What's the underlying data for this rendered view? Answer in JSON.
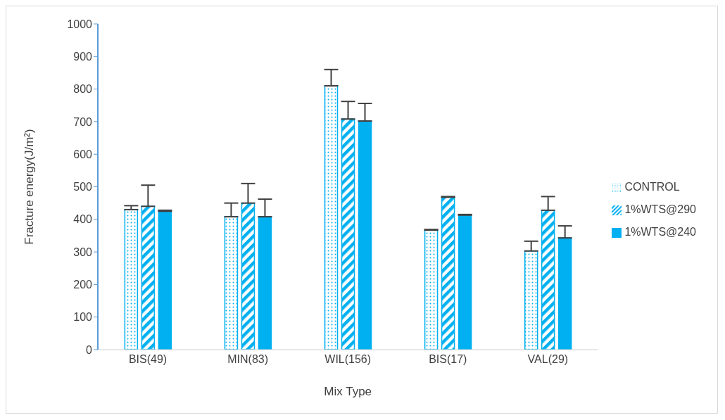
{
  "chart_data": {
    "type": "bar",
    "xlabel": "Mix Type",
    "ylabel": "Fracture energy(J/m²)",
    "categories": [
      "BIS(49)",
      "MIN(83)",
      "WIL(156)",
      "BIS(17)",
      "VAL(29)"
    ],
    "series": [
      {
        "name": "CONTROL",
        "color": "#00b0f0",
        "values": [
          430,
          408,
          810,
          367,
          303
        ],
        "errors": [
          [
            430,
            442
          ],
          [
            408,
            450
          ],
          [
            810,
            860
          ],
          [
            367,
            369
          ],
          [
            303,
            333
          ]
        ]
      },
      {
        "name": "1%WTS@290",
        "color": "#00b0f0",
        "values": [
          440,
          450,
          708,
          468,
          428
        ],
        "errors": [
          [
            440,
            505
          ],
          [
            450,
            510
          ],
          [
            708,
            762
          ],
          [
            468,
            470
          ],
          [
            428,
            470
          ]
        ]
      },
      {
        "name": "1%WTS@240",
        "color": "#00b0f0",
        "values": [
          425,
          408,
          702,
          413,
          343
        ],
        "errors": [
          [
            425,
            428
          ],
          [
            408,
            462
          ],
          [
            702,
            756
          ],
          [
            413,
            415
          ],
          [
            343,
            380
          ]
        ]
      }
    ],
    "ylim": [
      0,
      1000
    ],
    "yticks": [
      0,
      100,
      200,
      300,
      400,
      500,
      600,
      700,
      800,
      900,
      1000
    ],
    "grid": false,
    "legend": "right"
  }
}
